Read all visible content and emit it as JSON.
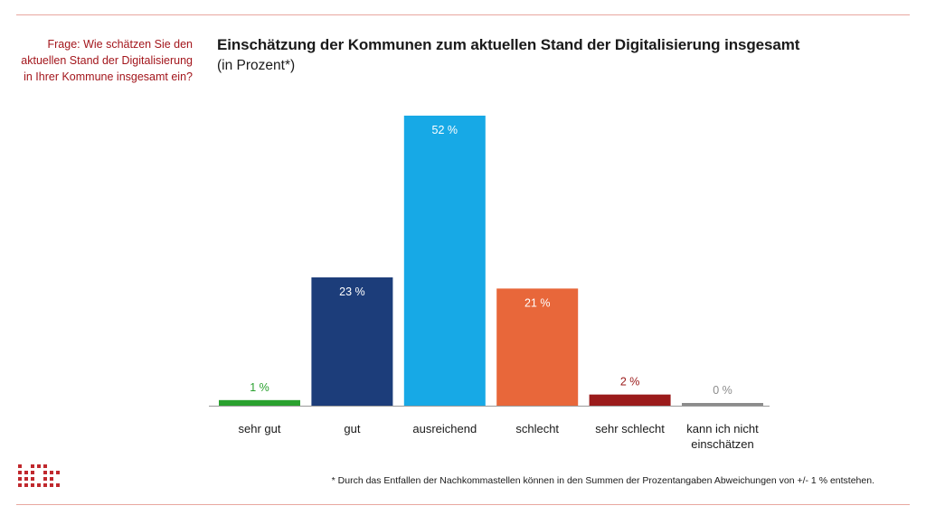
{
  "question": "Frage: Wie schätzen Sie den aktuellen Stand der Digitalisierung in Ihrer Kommune insgesamt ein?",
  "footnote": "* Durch das Entfallen der Nachkommastellen können in den Summen der Prozentangaben Abweichungen von +/- 1 % entstehen.",
  "chart_data": {
    "type": "bar",
    "title": "Einschätzung der Kommunen zum aktuellen Stand der Digitalisierung insgesamt",
    "subtitle": "(in Prozent*)",
    "categories": [
      "sehr gut",
      "gut",
      "ausreichend",
      "schlecht",
      "sehr schlecht",
      "kann ich nicht einschätzen"
    ],
    "values": [
      1,
      23,
      52,
      21,
      2,
      0
    ],
    "value_labels": [
      "1 %",
      "23 %",
      "52 %",
      "21 %",
      "2 %",
      "0 %"
    ],
    "colors": [
      "#2aa12f",
      "#1c3d7a",
      "#17a9e6",
      "#e8673a",
      "#9b1b1b",
      "#8c8c8c"
    ],
    "label_colors": [
      "#2aa12f",
      "#ffffff",
      "#ffffff",
      "#ffffff",
      "#9b1b1b",
      "#8c8c8c"
    ],
    "ylim": [
      0,
      52
    ],
    "grid": false,
    "legend": "none"
  },
  "colors": {
    "accent": "#a3161c",
    "rule": "#e8a7a0"
  },
  "logo": {
    "icon": "institute-logo-icon"
  }
}
